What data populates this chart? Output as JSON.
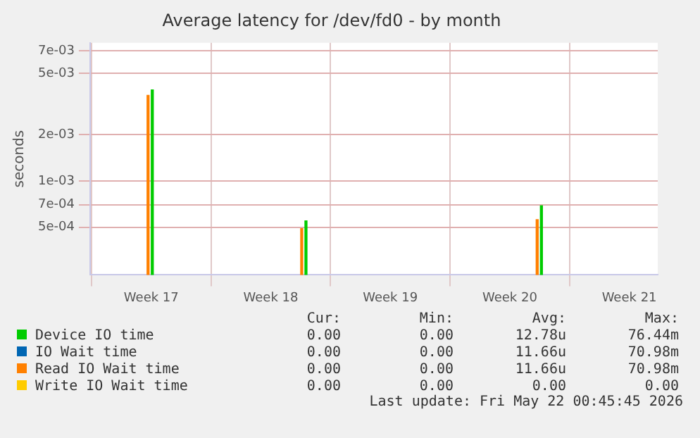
{
  "chart_data": {
    "type": "bar",
    "title": "Average latency for /dev/fd0 - by month",
    "ylabel": "seconds",
    "x": [
      "2026-04-23T09:00",
      "2026-05-02T09:00",
      "2026-05-16T04:00"
    ],
    "series": [
      {
        "name": "Device IO time",
        "color": "#00cc00",
        "values": [
          0.0039,
          0.00055,
          0.00069
        ]
      },
      {
        "name": "IO Wait time",
        "color": "#0066b3",
        "values": [
          null,
          null,
          null
        ]
      },
      {
        "name": "Read IO Wait time",
        "color": "#ff8000",
        "values": [
          0.0036,
          0.00049,
          0.00056
        ]
      },
      {
        "name": "Write IO Wait time",
        "color": "#ffcc00",
        "values": [
          null,
          null,
          null
        ]
      }
    ],
    "log": true,
    "ylim": [
      0.000245,
      0.0079
    ],
    "yticks": [
      {
        "value": 0.0005,
        "label": "5e-04"
      },
      {
        "value": 0.0007,
        "label": "7e-04"
      },
      {
        "value": 0.001,
        "label": "1e-03"
      },
      {
        "value": 0.002,
        "label": "2e-03"
      },
      {
        "value": 0.005,
        "label": "5e-03"
      },
      {
        "value": 0.007,
        "label": "7e-03"
      }
    ],
    "xlim": [
      "2026-04-19T22:00",
      "2026-05-23T04:00"
    ],
    "xticks": [
      {
        "value": "2026-04-23T12:00",
        "label": "Week 17"
      },
      {
        "value": "2026-04-30T12:00",
        "label": "Week 18"
      },
      {
        "value": "2026-05-07T12:00",
        "label": "Week 19"
      },
      {
        "value": "2026-05-14T12:00",
        "label": "Week 20"
      },
      {
        "value": "2026-05-21T12:00",
        "label": "Week 21"
      }
    ],
    "grid": true,
    "legend": "bottom",
    "annotations": [
      "Cur:",
      "Min:",
      "Avg:",
      "Max:",
      "0.00",
      "0.00",
      "12.78u",
      "76.44m",
      "0.00",
      "0.00",
      "11.66u",
      "70.98m",
      "0.00",
      "0.00",
      "11.66u",
      "70.98m",
      "0.00",
      "0.00",
      "0.00",
      "0.00",
      "Last update: Fri May 22 00:45:45 2026"
    ]
  }
}
